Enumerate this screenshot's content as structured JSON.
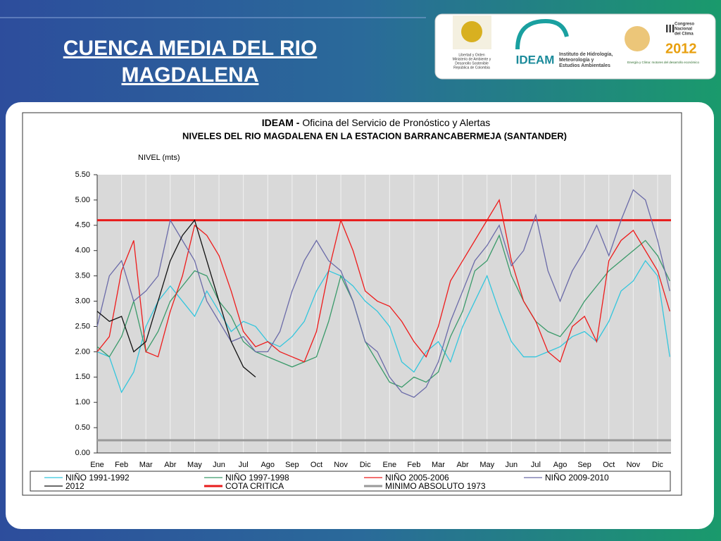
{
  "slide": {
    "heading_line1": "CUENCA  MEDIA DEL RIO",
    "heading_line2": "MAGDALENA",
    "logo_ministry": [
      "Libertad y Orden",
      "Ministerio de Ambiente y",
      "Desarrollo Sostenible",
      "República de Colombia"
    ],
    "logo_ideam": "IDEAM",
    "logo_ideam_text": [
      "Instituto de Hidrología,",
      "Meteorología y",
      "Estudios Ambientales"
    ],
    "logo_congress": [
      "III",
      "Congreso",
      "Nacional",
      "del Clima",
      "2012"
    ],
    "logo_congress_tagline": "Energía y Clima: motores del desarrollo económico"
  },
  "chart_data": {
    "type": "line",
    "title_org": "IDEAM -",
    "title": "Oficina del Servicio de Pronóstico y Alertas",
    "subtitle": "NIVELES DEL RIO MAGDALENA EN LA ESTACION BARRANCABERMEJA (SANTANDER)",
    "y_label": "NIVEL (mts)",
    "x": [
      0,
      0.5,
      1,
      1.5,
      2,
      2.5,
      3,
      3.5,
      4,
      4.5,
      5,
      5.5,
      6,
      6.5,
      7,
      7.5,
      8,
      8.5,
      9,
      9.5,
      10,
      10.5,
      11,
      11.5,
      12,
      12.5,
      13,
      13.5,
      14,
      14.5,
      15,
      15.5,
      16,
      16.5,
      17,
      17.5,
      18,
      18.5,
      19,
      19.5,
      20,
      20.5,
      21,
      21.5,
      22,
      22.5,
      23,
      23.5
    ],
    "xlim": [
      0,
      23.55
    ],
    "xticks": [
      {
        "value": 0,
        "label": "Ene"
      },
      {
        "value": 1,
        "label": "Feb"
      },
      {
        "value": 2,
        "label": "Mar"
      },
      {
        "value": 3,
        "label": "Abr"
      },
      {
        "value": 4,
        "label": "May"
      },
      {
        "value": 5,
        "label": "Jun"
      },
      {
        "value": 6,
        "label": "Jul"
      },
      {
        "value": 7,
        "label": "Ago"
      },
      {
        "value": 8,
        "label": "Sep"
      },
      {
        "value": 9,
        "label": "Oct"
      },
      {
        "value": 10,
        "label": "Nov"
      },
      {
        "value": 11,
        "label": "Dic"
      },
      {
        "value": 12,
        "label": "Ene"
      },
      {
        "value": 13,
        "label": "Feb"
      },
      {
        "value": 14,
        "label": "Mar"
      },
      {
        "value": 15,
        "label": "Abr"
      },
      {
        "value": 16,
        "label": "May"
      },
      {
        "value": 17,
        "label": "Jun"
      },
      {
        "value": 18,
        "label": "Jul"
      },
      {
        "value": 19,
        "label": "Ago"
      },
      {
        "value": 20,
        "label": "Sep"
      },
      {
        "value": 21,
        "label": "Oct"
      },
      {
        "value": 22,
        "label": "Nov"
      },
      {
        "value": 23,
        "label": "Dic"
      }
    ],
    "ylim": [
      0,
      5.5
    ],
    "yticks": [
      {
        "value": 0,
        "label": "0.00"
      },
      {
        "value": 0.5,
        "label": "0.50"
      },
      {
        "value": 1,
        "label": "1.00"
      },
      {
        "value": 1.5,
        "label": "1.50"
      },
      {
        "value": 2,
        "label": "2.00"
      },
      {
        "value": 2.5,
        "label": "2.50"
      },
      {
        "value": 3,
        "label": "3.00"
      },
      {
        "value": 3.5,
        "label": "3.50"
      },
      {
        "value": 4,
        "label": "4.00"
      },
      {
        "value": 4.5,
        "label": "4.50"
      },
      {
        "value": 5,
        "label": "5.00"
      },
      {
        "value": 5.5,
        "label": "5.50"
      }
    ],
    "grid": true,
    "series": [
      {
        "name": "NIÑO 1991-1992",
        "color": "#33c6dd",
        "values": [
          2.0,
          1.9,
          1.2,
          1.6,
          2.5,
          3.0,
          3.3,
          3.0,
          2.7,
          3.2,
          2.8,
          2.4,
          2.6,
          2.5,
          2.2,
          2.1,
          2.3,
          2.6,
          3.2,
          3.6,
          3.5,
          3.3,
          3.0,
          2.8,
          2.5,
          1.8,
          1.6,
          2.0,
          2.2,
          1.8,
          2.5,
          3.0,
          3.5,
          2.8,
          2.2,
          1.9,
          1.9,
          2.0,
          2.1,
          2.3,
          2.4,
          2.2,
          2.6,
          3.2,
          3.4,
          3.8,
          3.5,
          1.9
        ]
      },
      {
        "name": "NIÑO 1997-1998",
        "color": "#3a9a6a",
        "values": [
          2.1,
          1.9,
          2.3,
          3.0,
          2.0,
          2.4,
          3.0,
          3.3,
          3.6,
          3.5,
          3.0,
          2.7,
          2.2,
          2.0,
          1.9,
          1.8,
          1.7,
          1.8,
          1.9,
          2.6,
          3.5,
          3.0,
          2.2,
          1.8,
          1.4,
          1.3,
          1.5,
          1.4,
          1.6,
          2.3,
          2.8,
          3.6,
          3.8,
          4.3,
          3.5,
          3.0,
          2.6,
          2.4,
          2.3,
          2.6,
          3.0,
          3.3,
          3.6,
          3.8,
          4.0,
          4.2,
          3.9,
          3.4
        ]
      },
      {
        "name": "NIÑO 2005-2006",
        "color": "#ee1b1b",
        "values": [
          2.0,
          2.3,
          3.6,
          4.2,
          2.0,
          1.9,
          2.8,
          3.5,
          4.5,
          4.3,
          3.9,
          3.2,
          2.4,
          2.1,
          2.2,
          2.0,
          1.9,
          1.8,
          2.4,
          3.6,
          4.6,
          4.0,
          3.2,
          3.0,
          2.9,
          2.6,
          2.2,
          1.9,
          2.5,
          3.4,
          3.8,
          4.2,
          4.6,
          5.0,
          3.8,
          3.0,
          2.6,
          2.0,
          1.8,
          2.5,
          2.7,
          2.2,
          3.8,
          4.2,
          4.4,
          4.0,
          3.6,
          2.8
        ]
      },
      {
        "name": "NIÑO 2009-2010",
        "color": "#6a6aa8",
        "values": [
          2.5,
          3.5,
          3.8,
          3.0,
          3.2,
          3.5,
          4.6,
          4.2,
          3.8,
          3.0,
          2.6,
          2.2,
          2.3,
          2.0,
          2.0,
          2.4,
          3.2,
          3.8,
          4.2,
          3.8,
          3.6,
          3.0,
          2.2,
          2.0,
          1.5,
          1.2,
          1.1,
          1.3,
          1.8,
          2.6,
          3.2,
          3.8,
          4.1,
          4.5,
          3.7,
          4.0,
          4.7,
          3.6,
          3.0,
          3.6,
          4.0,
          4.5,
          3.9,
          4.6,
          5.2,
          5.0,
          4.2,
          3.2
        ]
      },
      {
        "name": "2012",
        "color": "#111111",
        "values": [
          2.8,
          2.6,
          2.7,
          2.0,
          2.2,
          3.0,
          3.8,
          4.3,
          4.6,
          3.8,
          3.0,
          2.2,
          1.7,
          1.5,
          null,
          null,
          null,
          null,
          null,
          null,
          null,
          null,
          null,
          null,
          null,
          null,
          null,
          null,
          null,
          null,
          null,
          null,
          null,
          null,
          null,
          null,
          null,
          null,
          null,
          null,
          null,
          null,
          null,
          null,
          null,
          null,
          null,
          null
        ]
      }
    ],
    "reference_lines": [
      {
        "name": "COTA CRITICA",
        "color": "#e81c1c",
        "value": 4.6
      },
      {
        "name": "MINIMO ABSOLUTO 1973",
        "color": "#999999",
        "value": 0.25
      }
    ]
  }
}
